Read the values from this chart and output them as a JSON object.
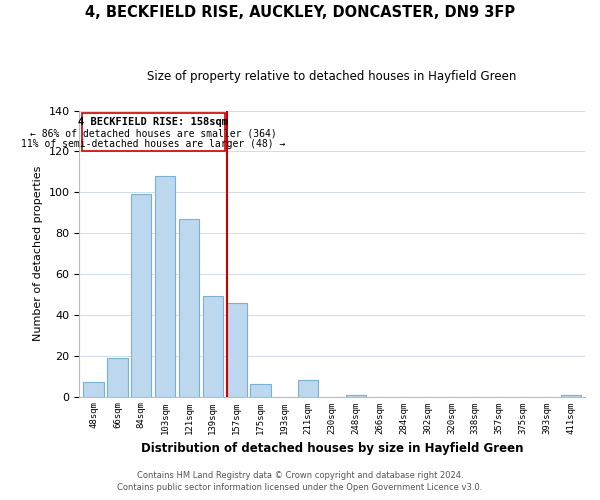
{
  "title": "4, BECKFIELD RISE, AUCKLEY, DONCASTER, DN9 3FP",
  "subtitle": "Size of property relative to detached houses in Hayfield Green",
  "xlabel": "Distribution of detached houses by size in Hayfield Green",
  "ylabel": "Number of detached properties",
  "bin_labels": [
    "48sqm",
    "66sqm",
    "84sqm",
    "103sqm",
    "121sqm",
    "139sqm",
    "157sqm",
    "175sqm",
    "193sqm",
    "211sqm",
    "230sqm",
    "248sqm",
    "266sqm",
    "284sqm",
    "302sqm",
    "320sqm",
    "338sqm",
    "357sqm",
    "375sqm",
    "393sqm",
    "411sqm"
  ],
  "bar_heights": [
    7,
    19,
    99,
    108,
    87,
    49,
    46,
    6,
    0,
    8,
    0,
    1,
    0,
    0,
    0,
    0,
    0,
    0,
    0,
    0,
    1
  ],
  "bar_color": "#bdd7ee",
  "bar_edge_color": "#7ab0d4",
  "highlight_color": "#cc0000",
  "annotation_title": "4 BECKFIELD RISE: 158sqm",
  "annotation_line1": "← 86% of detached houses are smaller (364)",
  "annotation_line2": "11% of semi-detached houses are larger (48) →",
  "ylim": [
    0,
    140
  ],
  "yticks": [
    0,
    20,
    40,
    60,
    80,
    100,
    120,
    140
  ],
  "footer1": "Contains HM Land Registry data © Crown copyright and database right 2024.",
  "footer2": "Contains public sector information licensed under the Open Government Licence v3.0."
}
